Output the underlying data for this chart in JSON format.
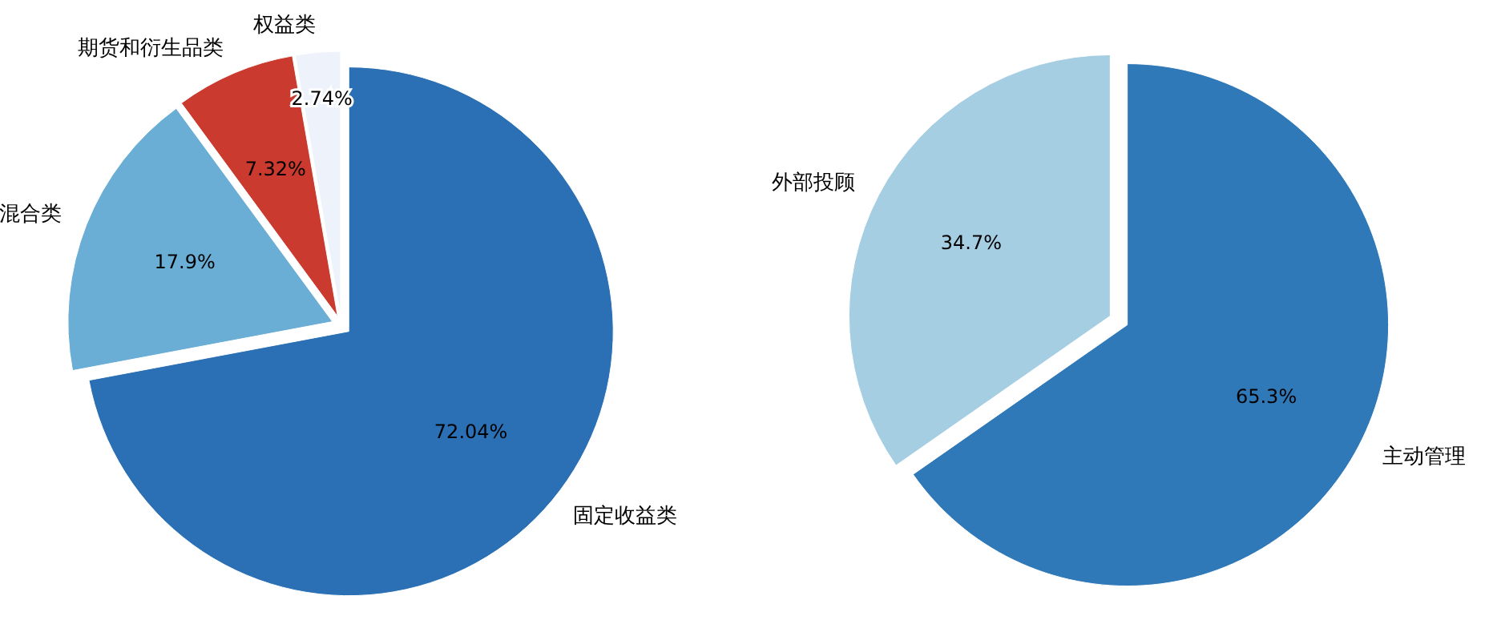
{
  "chart_data": [
    {
      "type": "pie",
      "categories": [
        "权益类",
        "期货和衍生品类",
        "混合类",
        "固定收益类"
      ],
      "values": [
        2.74,
        7.32,
        17.9,
        72.04
      ],
      "colors": [
        "#eef3fb",
        "#cb3a2f",
        "#6aaed6",
        "#2b6fb5"
      ],
      "value_labels": [
        "2.74%",
        "7.32%",
        "17.9%",
        "72.04%"
      ]
    },
    {
      "type": "pie",
      "categories": [
        "外部投顾",
        "主动管理"
      ],
      "values": [
        34.7,
        65.3
      ],
      "colors": [
        "#a6cee3",
        "#3079b8"
      ],
      "value_labels": [
        "34.7%",
        "65.3%"
      ]
    }
  ]
}
